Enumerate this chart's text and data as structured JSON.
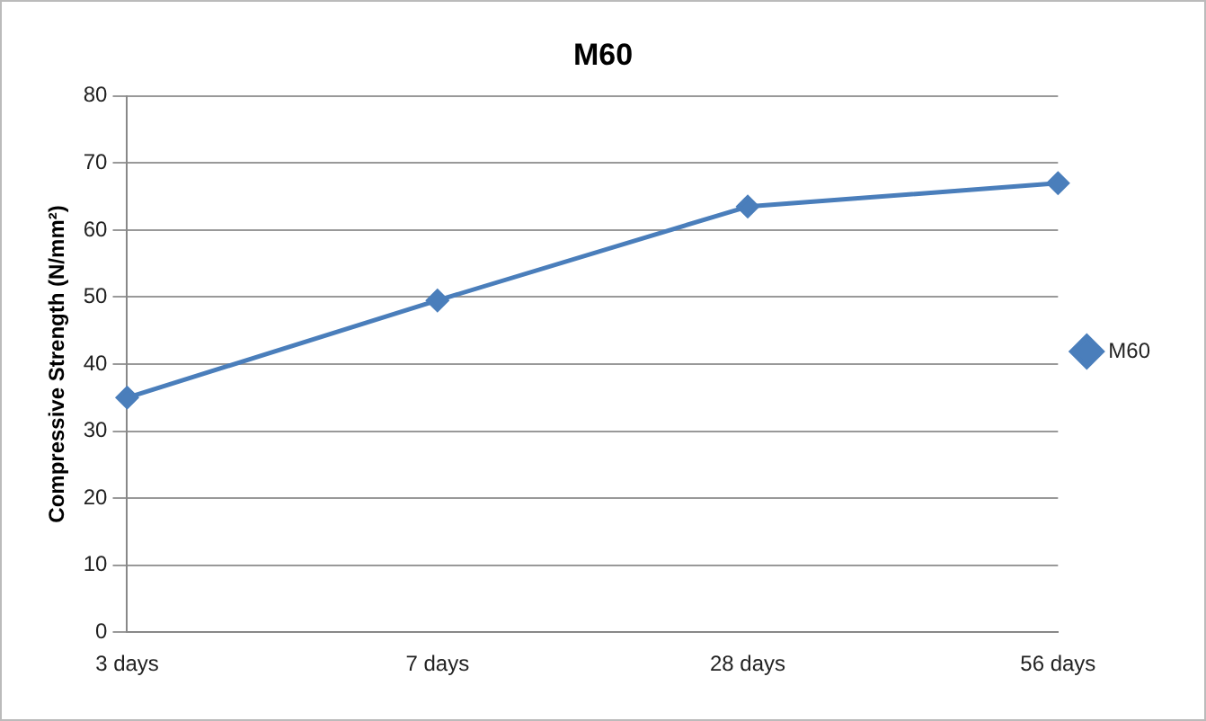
{
  "chart_data": {
    "type": "line",
    "title": "M60",
    "ylabel": "Compressive Strength (N/mm²)",
    "categories": [
      "3 days",
      "7 days",
      "28 days",
      "56 days"
    ],
    "series": [
      {
        "name": "M60",
        "color": "#4a7ebb",
        "values": [
          35,
          49.5,
          63.5,
          67
        ]
      }
    ],
    "ylim": [
      0,
      80
    ],
    "yticks": [
      0,
      10,
      20,
      30,
      40,
      50,
      60,
      70,
      80
    ],
    "grid": "y",
    "legend": "right",
    "marker": "diamond",
    "line_style": "solid"
  }
}
